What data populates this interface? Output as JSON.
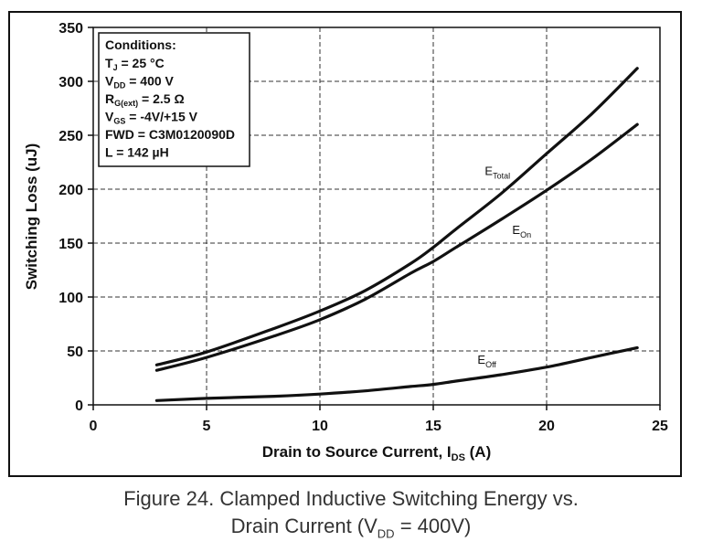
{
  "chart_data": {
    "type": "line",
    "xlabel": {
      "main": "Drain to Source Current, I",
      "sub": "DS",
      "tail": " (A)"
    },
    "ylabel": "Switching Loss (uJ)",
    "xlim": [
      0,
      25
    ],
    "ylim": [
      0,
      350
    ],
    "xticks": [
      "0",
      "5",
      "10",
      "15",
      "20",
      "25"
    ],
    "yticks": [
      "0",
      "50",
      "100",
      "150",
      "200",
      "250",
      "300",
      "350"
    ],
    "grid": true,
    "series": [
      {
        "name": "E",
        "name_sub": "Total",
        "x": [
          2.8,
          5,
          8,
          10,
          12,
          14,
          15,
          16,
          18,
          20,
          22,
          24
        ],
        "y": [
          37,
          49,
          71,
          87,
          106,
          131,
          146,
          163,
          196,
          233,
          270,
          312
        ]
      },
      {
        "name": "E",
        "name_sub": "On",
        "x": [
          2.8,
          5,
          8,
          10,
          12,
          14,
          15,
          16,
          18,
          20,
          22,
          24
        ],
        "y": [
          32,
          44,
          64,
          79,
          98,
          122,
          133,
          146,
          172,
          199,
          228,
          260
        ]
      },
      {
        "name": "E",
        "name_sub": "Off",
        "x": [
          2.8,
          5,
          8,
          10,
          12,
          14,
          15,
          16,
          18,
          20,
          22,
          24
        ],
        "y": [
          4,
          6,
          8,
          10,
          13,
          17,
          19,
          22,
          28,
          35,
          44,
          53
        ]
      }
    ],
    "conditions": {
      "heading": "Conditions:",
      "lines": [
        {
          "pre": "T",
          "sub": "J",
          "post": " = 25 °C"
        },
        {
          "pre": "V",
          "sub": "DD",
          "post": " = 400 V"
        },
        {
          "pre": "R",
          "sub": "G(ext)",
          "post": " = 2.5 Ω"
        },
        {
          "pre": "V",
          "sub": "GS",
          "post": " = -4V/+15  V"
        },
        {
          "pre": "FWD = C3M0120090D",
          "sub": "",
          "post": ""
        },
        {
          "pre": "L = 142 µH",
          "sub": "",
          "post": ""
        }
      ]
    }
  },
  "caption": {
    "line1": "Figure 24. Clamped Inductive Switching Energy vs.",
    "line2_pre": "Drain Current (V",
    "line2_sub": "DD",
    "line2_post": " = 400V)"
  }
}
